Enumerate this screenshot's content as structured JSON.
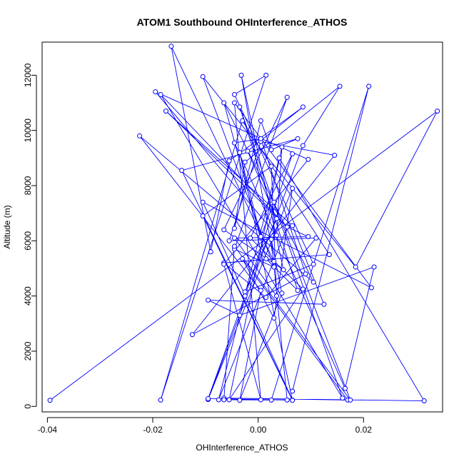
{
  "chart_data": {
    "type": "line",
    "title": "ATOM1 Southbound OHInterference_ATHOS",
    "xlabel": "OHInterference_ATHOS",
    "ylabel": "Altitude (m)",
    "xlim": [
      -0.041,
      0.035
    ],
    "ylim": [
      -200,
      13200
    ],
    "x_ticks": [
      -0.04,
      -0.02,
      0.0,
      0.02
    ],
    "x_tick_labels": [
      "-0.04",
      "-0.02",
      "0.00",
      "0.02"
    ],
    "y_ticks": [
      0,
      2000,
      4000,
      6000,
      8000,
      10000,
      12000
    ],
    "y_tick_labels": [
      "0",
      "2000",
      "4000",
      "6000",
      "8000",
      "10000",
      "12000"
    ],
    "grid": false,
    "series": [
      {
        "color": "#0000ff",
        "marker": "open-circle",
        "x": [
          -0.0395,
          0.034,
          0.0185,
          -0.0105,
          0.003,
          -0.0045,
          0.0055,
          -0.0065,
          0.0048,
          -0.0032,
          0.003,
          -0.0165,
          -0.009,
          -0.0055,
          0.0085,
          -0.002,
          0.0035,
          -0.0025,
          0.0105,
          -0.0045,
          0.0015,
          -0.0185,
          -0.003,
          0.0135,
          -0.0065,
          0.0015,
          0.011,
          -0.0055,
          0.0005,
          0.0145,
          -0.0125,
          0.009,
          0.0005,
          -0.0045,
          0.0165,
          0.022,
          -0.0035,
          -0.0095,
          0.0125,
          0.0065,
          -0.0175,
          0.0055,
          -0.0075,
          0.004,
          0.0315,
          -0.0065,
          0.017,
          -0.003,
          0.003,
          0.0065,
          -0.0095,
          0.0085,
          0.0155,
          -0.0025,
          -0.0045,
          0.0005,
          0.0025,
          0.0075,
          -0.0145,
          0.0065,
          -0.0105,
          0.0215,
          -0.0045,
          0.0005,
          -0.0065,
          0.0095,
          -0.0195,
          0.0035,
          0.0045,
          -0.0055,
          0.0085,
          -0.0015,
          0.0065,
          -0.0025,
          -0.0095,
          0.0055,
          0.0025,
          0.0045,
          -0.0035,
          0.0005,
          -0.0225,
          0.0105,
          -0.0065,
          0.0015,
          0.0075,
          -0.0035,
          0.016,
          -0.0185,
          0.0055,
          0.0095,
          -0.0045,
          0.0035,
          0.0025,
          -0.0105,
          0.0065,
          -0.0035,
          0.0005,
          0.003,
          0.0175,
          -0.0045,
          -0.0065,
          0.0025,
          0.021,
          0.0065
        ],
        "y": [
          220,
          10700,
          5050,
          11950,
          5050,
          5700,
          11200,
          6400,
          4950,
          12000,
          5250,
          13050,
          5600,
          8900,
          10850,
          9250,
          6800,
          4150,
          5150,
          11300,
          12000,
          230,
          10350,
          5500,
          5200,
          3950,
          6100,
          6000,
          9600,
          9100,
          2600,
          4800,
          9700,
          9550,
          650,
          5050,
          3300,
          3850,
          3700,
          6550,
          10700,
          6500,
          240,
          9000,
          200,
          300,
          230,
          5350,
          3200,
          7900,
          250,
          9450,
          11600,
          8850,
          6450,
          10350,
          9300,
          9700,
          8550,
          230,
          7400,
          4300,
          11000,
          240,
          5150,
          8950,
          11400,
          6200,
          9400,
          240,
          4250,
          6100,
          9150,
          4000,
          280,
          230,
          6050,
          4100,
          220,
          4200,
          9800,
          4500,
          11000,
          5350,
          4200,
          10850,
          300,
          11300,
          6500,
          6150,
          6100,
          4000,
          8700,
          6900,
          220,
          9200,
          6150,
          7400,
          230,
          5800,
          240,
          230,
          11600,
          550
        ]
      }
    ]
  }
}
